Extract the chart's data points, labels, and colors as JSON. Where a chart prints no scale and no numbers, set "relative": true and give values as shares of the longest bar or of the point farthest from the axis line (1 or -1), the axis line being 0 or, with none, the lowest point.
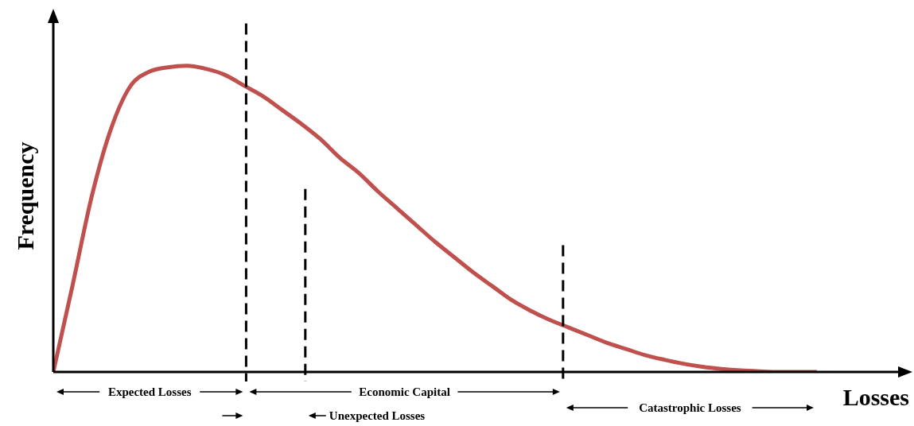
{
  "chart_data": {
    "type": "line",
    "relative": true,
    "xlabel": "Losses",
    "ylabel": "Frequency",
    "line_style": "solid",
    "categories": [
      null,
      null,
      null,
      null,
      null,
      null,
      null,
      null,
      null,
      null,
      null,
      null,
      null,
      null,
      null,
      null,
      null,
      null,
      null,
      null,
      null,
      null,
      null,
      null,
      null,
      null,
      null,
      null,
      null,
      null,
      null,
      null,
      null,
      null,
      null,
      null,
      null,
      null,
      null,
      null,
      null,
      null,
      null,
      null,
      null
    ],
    "series": [
      {
        "color": "#c0504d",
        "values": [
          0,
          0.28,
          0.57,
          0.79,
          0.93,
          0.98,
          0.995,
          1,
          0.99,
          0.97,
          0.935,
          0.9,
          0.855,
          0.81,
          0.76,
          0.7,
          0.65,
          0.59,
          0.535,
          0.48,
          0.425,
          0.375,
          0.325,
          0.28,
          0.235,
          0.2,
          0.17,
          0.145,
          0.12,
          0.095,
          0.075,
          0.055,
          0.04,
          0.027,
          0.017,
          0.01,
          0.005,
          0.002,
          0,
          0,
          0,
          null,
          null,
          null,
          null
        ]
      }
    ],
    "annotations": [
      "Expected Losses",
      "Economic Capital",
      "Unexpected Losses",
      "Catastrophic Losses"
    ]
  }
}
